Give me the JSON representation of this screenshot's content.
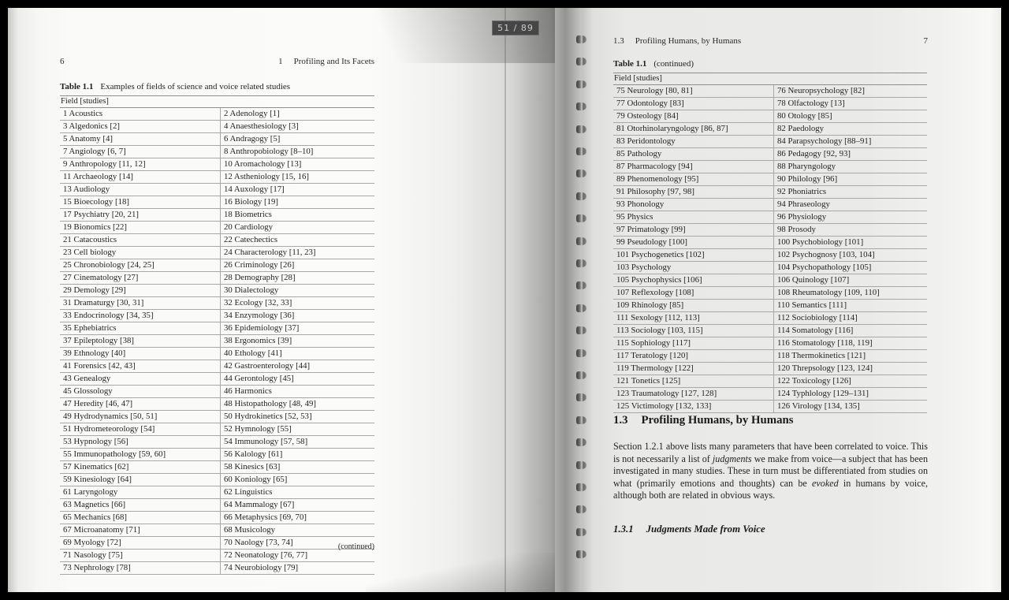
{
  "viewer": {
    "page_indicator": "51 / 89",
    "badge_bg": "#464646",
    "badge_text_color": "#cacaca"
  },
  "left_page": {
    "page_number": "6",
    "running_header": {
      "number": "1",
      "title": "Profiling and Its Facets"
    },
    "table": {
      "caption_label": "Table 1.1",
      "caption_text": "Examples of fields of science and voice related studies",
      "column_header": "Field [studies]",
      "rows": [
        [
          "1 Acoustics",
          "2 Adenology [1]"
        ],
        [
          "3 Algedonics [2]",
          "4 Anaesthesiology [3]"
        ],
        [
          "5 Anatomy [4]",
          "6 Andragogy [5]"
        ],
        [
          "7 Angiology [6, 7]",
          "8 Anthropobiology [8–10]"
        ],
        [
          "9 Anthropology [11, 12]",
          "10 Aromachology [13]"
        ],
        [
          "11 Archaeology [14]",
          "12 Astheniology [15, 16]"
        ],
        [
          "13 Audiology",
          "14 Auxology [17]"
        ],
        [
          "15 Bioecology [18]",
          "16 Biology [19]"
        ],
        [
          "17 Psychiatry [20, 21]",
          "18 Biometrics"
        ],
        [
          "19 Bionomics [22]",
          "20 Cardiology"
        ],
        [
          "21 Catacoustics",
          "22 Catechectics"
        ],
        [
          "23 Cell biology",
          "24 Characterology [11, 23]"
        ],
        [
          "25 Chronobiology [24, 25]",
          "26 Criminology [26]"
        ],
        [
          "27 Cinematology [27]",
          "28 Demography [28]"
        ],
        [
          "29 Demology [29]",
          "30 Dialectology"
        ],
        [
          "31 Dramaturgy [30, 31]",
          "32 Ecology [32, 33]"
        ],
        [
          "33 Endocrinology [34, 35]",
          "34 Enzymology [36]"
        ],
        [
          "35 Ephebiatrics",
          "36 Epidemiology [37]"
        ],
        [
          "37 Epileptology [38]",
          "38 Ergonomics [39]"
        ],
        [
          "39 Ethnology [40]",
          "40 Ethology [41]"
        ],
        [
          "41 Forensics [42, 43]",
          "42 Gastroenterology [44]"
        ],
        [
          "43 Genealogy",
          "44 Gerontology [45]"
        ],
        [
          "45 Glossology",
          "46 Harmonics"
        ],
        [
          "47 Heredity [46, 47]",
          "48 Histopathology [48, 49]"
        ],
        [
          "49 Hydrodynamics [50, 51]",
          "50 Hydrokinetics [52, 53]"
        ],
        [
          "51 Hydrometeorology [54]",
          "52 Hymnology [55]"
        ],
        [
          "53 Hypnology [56]",
          "54 Immunology [57, 58]"
        ],
        [
          "55 Immunopathology [59, 60]",
          "56 Kalology [61]"
        ],
        [
          "57 Kinematics [62]",
          "58 Kinesics [63]"
        ],
        [
          "59 Kinesiology [64]",
          "60 Koniology [65]"
        ],
        [
          "61 Laryngology",
          "62 Linguistics"
        ],
        [
          "63 Magnetics [66]",
          "64 Mammalogy [67]"
        ],
        [
          "65 Mechanics [68]",
          "66 Metaphysics [69, 70]"
        ],
        [
          "67 Microanatomy [71]",
          "68 Musicology"
        ],
        [
          "69 Myology [72]",
          "70 Naology [73, 74]"
        ],
        [
          "71 Nasology [75]",
          "72 Neonatology [76, 77]"
        ],
        [
          "73 Nephrology [78]",
          "74 Neurobiology [79]"
        ]
      ],
      "footer_note": "(continued)"
    }
  },
  "right_page": {
    "page_number": "7",
    "running_header": {
      "number": "1.3",
      "title": "Profiling Humans, by Humans"
    },
    "table": {
      "caption_label": "Table 1.1",
      "caption_text": "(continued)",
      "column_header": "Field [studies]",
      "rows": [
        [
          "75 Neurology [80, 81]",
          "76 Neuropsychology [82]"
        ],
        [
          "77 Odontology [83]",
          "78 Olfactology [13]"
        ],
        [
          "79 Osteology [84]",
          "80 Otology [85]"
        ],
        [
          "81 Otorhinolaryngology [86, 87]",
          "82 Paedology"
        ],
        [
          "83 Peridontology",
          "84 Parapsychology [88–91]"
        ],
        [
          "85 Pathology",
          "86 Pedagogy [92, 93]"
        ],
        [
          "87 Pharmacology [94]",
          "88 Pharyngology"
        ],
        [
          "89 Phenomenology [95]",
          "90 Philology [96]"
        ],
        [
          "91 Philosophy [97, 98]",
          "92 Phoniatrics"
        ],
        [
          "93 Phonology",
          "94 Phraseology"
        ],
        [
          "95 Physics",
          "96 Physiology"
        ],
        [
          "97 Primatology [99]",
          "98 Prosody"
        ],
        [
          "99 Pseudology [100]",
          "100 Psychobiology [101]"
        ],
        [
          "101 Psychogenetics [102]",
          "102 Psychognosy [103, 104]"
        ],
        [
          "103 Psychology",
          "104 Psychopathology [105]"
        ],
        [
          "105 Psychophysics [106]",
          "106 Quinology [107]"
        ],
        [
          "107 Reflexology [108]",
          "108 Rheumatology [109, 110]"
        ],
        [
          "109 Rhinology [85]",
          "110 Semantics [111]"
        ],
        [
          "111 Sexology [112, 113]",
          "112 Sociobiology [114]"
        ],
        [
          "113 Sociology [103, 115]",
          "114 Somatology [116]"
        ],
        [
          "115 Sophiology [117]",
          "116 Stomatology [118, 119]"
        ],
        [
          "117 Teratology [120]",
          "118 Thermokinetics [121]"
        ],
        [
          "119 Thermology [122]",
          "120 Threpsology [123, 124]"
        ],
        [
          "121 Tonetics [125]",
          "122 Toxicology [126]"
        ],
        [
          "123 Traumatology [127, 128]",
          "124 Typhlology [129–131]"
        ],
        [
          "125 Victimology [132, 133]",
          "126 Virology [134, 135]"
        ]
      ]
    },
    "section": {
      "number": "1.3",
      "title": "Profiling Humans, by Humans",
      "paragraph": [
        {
          "text": "Section 1.2.1 above lists many parameters that have been correlated to voice. This is not necessarily a list of ",
          "italic": false
        },
        {
          "text": "judgments",
          "italic": true
        },
        {
          "text": " we make from voice—a subject that has been investigated in many studies. These in turn must be differentiated from studies on what (primarily emotions and thoughts) can be ",
          "italic": false
        },
        {
          "text": "evoked",
          "italic": true
        },
        {
          "text": " in humans by voice, although both are related in obvious ways.",
          "italic": false
        }
      ],
      "subsection_number": "1.3.1",
      "subsection_title": "Judgments Made from Voice"
    }
  }
}
